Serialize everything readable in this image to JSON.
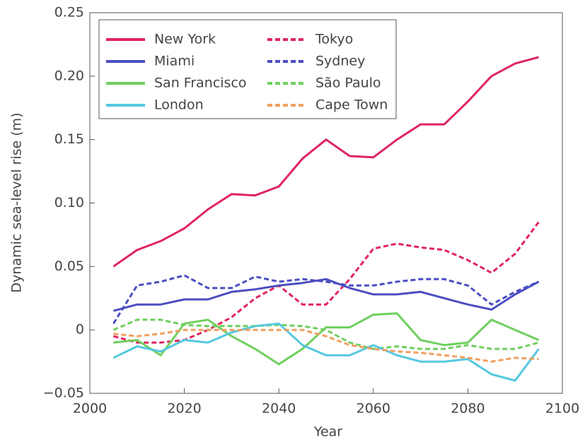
{
  "chart_data": {
    "type": "line",
    "xlabel": "Year",
    "ylabel": "Dynamic sea-level rise (m)",
    "x": [
      2005,
      2010,
      2015,
      2020,
      2025,
      2030,
      2035,
      2040,
      2045,
      2050,
      2055,
      2060,
      2065,
      2070,
      2075,
      2080,
      2085,
      2090,
      2095
    ],
    "xlim": [
      2000,
      2100
    ],
    "xticks": [
      2000,
      2020,
      2040,
      2060,
      2080,
      2100
    ],
    "ylim": [
      -0.05,
      0.25
    ],
    "yticks": [
      {
        "value": -0.05,
        "label": "−0.05"
      },
      0,
      0.05,
      {
        "value": 0.1,
        "label": "0.10"
      },
      0.15,
      {
        "value": 0.2,
        "label": "0.20"
      },
      0.25
    ],
    "legend": "upper left",
    "series": [
      {
        "name": "New York",
        "color": "#e0245e",
        "style": "solid",
        "values": [
          0.05,
          0.063,
          0.07,
          0.08,
          0.095,
          0.107,
          0.106,
          0.113,
          0.135,
          0.15,
          0.137,
          0.136,
          0.15,
          0.162,
          0.162,
          0.18,
          0.2,
          0.21,
          0.215
        ]
      },
      {
        "name": "Tokyo",
        "color": "#e0245e",
        "style": "dashed",
        "values": [
          -0.005,
          -0.01,
          -0.01,
          -0.008,
          0.0,
          0.01,
          0.025,
          0.035,
          0.02,
          0.02,
          0.04,
          0.064,
          0.068,
          0.065,
          0.063,
          0.055,
          0.045,
          0.06,
          0.085
        ]
      },
      {
        "name": "Miami",
        "color": "#4b4ec0",
        "style": "solid",
        "values": [
          0.015,
          0.02,
          0.02,
          0.024,
          0.024,
          0.03,
          0.032,
          0.035,
          0.037,
          0.04,
          0.033,
          0.028,
          0.028,
          0.03,
          0.025,
          0.02,
          0.016,
          0.028,
          0.038
        ]
      },
      {
        "name": "Sydney",
        "color": "#4b4ec0",
        "style": "dashed",
        "values": [
          0.005,
          0.035,
          0.038,
          0.043,
          0.033,
          0.033,
          0.042,
          0.038,
          0.04,
          0.038,
          0.035,
          0.035,
          0.038,
          0.04,
          0.04,
          0.035,
          0.02,
          0.03,
          0.038
        ]
      },
      {
        "name": "San Francisco",
        "color": "#6fcf5e",
        "style": "solid",
        "values": [
          -0.01,
          -0.008,
          -0.02,
          0.005,
          0.008,
          -0.005,
          -0.015,
          -0.027,
          -0.015,
          0.002,
          0.002,
          0.012,
          0.013,
          -0.008,
          -0.012,
          -0.01,
          0.008,
          0.0,
          -0.008
        ]
      },
      {
        "name": "São Paulo",
        "color": "#6fcf5e",
        "style": "dashed",
        "values": [
          0.0,
          0.008,
          0.008,
          0.004,
          0.003,
          0.003,
          0.003,
          0.004,
          0.003,
          0.0,
          -0.01,
          -0.015,
          -0.013,
          -0.015,
          -0.015,
          -0.012,
          -0.015,
          -0.015,
          -0.01
        ]
      },
      {
        "name": "London",
        "color": "#55c8e0",
        "style": "solid",
        "values": [
          -0.022,
          -0.013,
          -0.017,
          -0.008,
          -0.01,
          -0.002,
          0.003,
          0.005,
          -0.012,
          -0.02,
          -0.02,
          -0.012,
          -0.02,
          -0.025,
          -0.025,
          -0.023,
          -0.035,
          -0.04,
          -0.015
        ]
      },
      {
        "name": "Cape Town",
        "color": "#f0a060",
        "style": "dashed",
        "values": [
          -0.003,
          -0.005,
          -0.003,
          0.0,
          0.0,
          0.0,
          0.0,
          0.0,
          0.0,
          -0.005,
          -0.012,
          -0.015,
          -0.017,
          -0.018,
          -0.02,
          -0.022,
          -0.025,
          -0.022,
          -0.023
        ]
      }
    ]
  }
}
